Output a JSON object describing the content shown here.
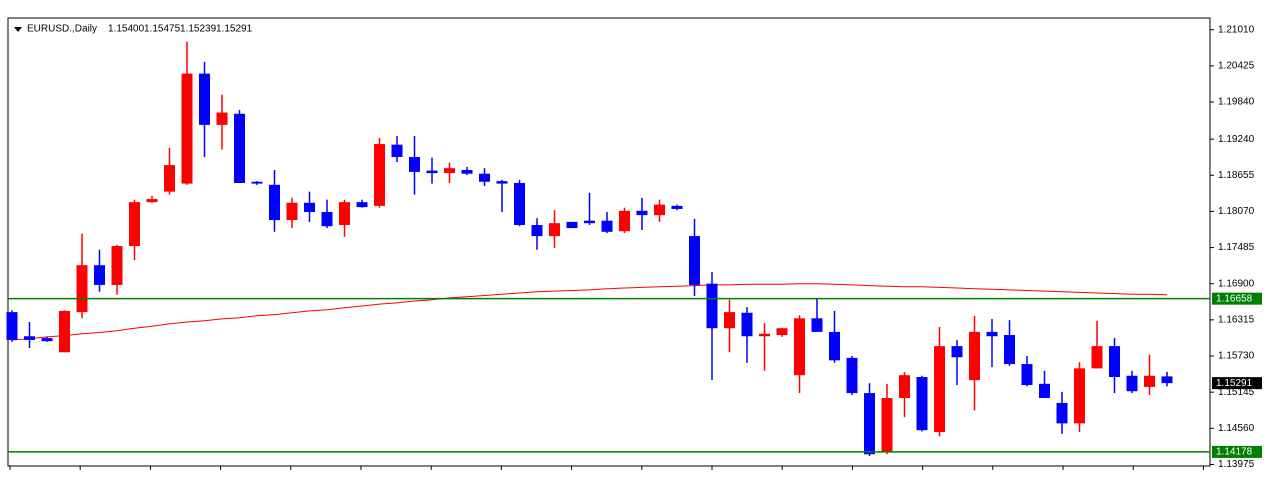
{
  "chart_data": {
    "type": "candlestick",
    "title": "EURUSD.,Daily",
    "header_values": [
      {
        "value": 1.154,
        "label": "1.15400"
      },
      {
        "value": 1.15475,
        "label": "1.15475"
      },
      {
        "value": 1.15239,
        "label": "1.15239"
      },
      {
        "value": 1.15291,
        "label": "1.15291"
      }
    ],
    "up_color": "#ff0000",
    "down_color": "#0000ff",
    "open": [
      1.1644,
      1.1605,
      1.1602,
      1.1579,
      1.1644,
      1.172,
      1.1688,
      1.1751,
      1.1822,
      1.1839,
      1.1852,
      1.203,
      1.1947,
      1.1965,
      1.1855,
      1.185,
      1.1793,
      1.1821,
      1.1806,
      1.1785,
      1.1822,
      1.1816,
      1.1915,
      1.1895,
      1.1873,
      1.1869,
      1.1874,
      1.1868,
      1.1856,
      1.1853,
      1.1785,
      1.1767,
      1.179,
      1.1792,
      1.1792,
      1.1775,
      1.1808,
      1.1801,
      1.1816,
      1.1767,
      1.169,
      1.1618,
      1.1643,
      1.1605,
      1.1607,
      1.1542,
      1.1634,
      1.1612,
      1.157,
      1.1513,
      1.1417,
      1.1505,
      1.1539,
      1.145,
      1.1589,
      1.1534,
      1.1612,
      1.1607,
      1.156,
      1.1528,
      1.1497,
      1.1464,
      1.1553,
      1.1589,
      1.1541,
      1.1523,
      1.154
    ],
    "high": [
      1.1647,
      1.1628,
      1.1604,
      1.1647,
      1.1771,
      1.1745,
      1.1753,
      1.1826,
      1.1832,
      1.191,
      1.2082,
      1.2049,
      1.1996,
      1.1971,
      1.1856,
      1.1874,
      1.1829,
      1.1839,
      1.1826,
      1.1826,
      1.1826,
      1.1926,
      1.1929,
      1.1929,
      1.1894,
      1.1886,
      1.1879,
      1.1877,
      1.1858,
      1.1858,
      1.1796,
      1.1809,
      1.179,
      1.1837,
      1.1806,
      1.1813,
      1.1829,
      1.1826,
      1.1818,
      1.1795,
      1.1709,
      1.1664,
      1.1652,
      1.1626,
      1.1618,
      1.1639,
      1.1667,
      1.1646,
      1.1573,
      1.1529,
      1.1528,
      1.1547,
      1.1541,
      1.162,
      1.1599,
      1.1638,
      1.1633,
      1.1631,
      1.1573,
      1.1549,
      1.1515,
      1.1563,
      1.163,
      1.1602,
      1.1549,
      1.1575,
      1.15475
    ],
    "low": [
      1.1596,
      1.1586,
      1.1596,
      1.1579,
      1.1634,
      1.1677,
      1.1672,
      1.1728,
      1.1821,
      1.1834,
      1.185,
      1.1895,
      1.1907,
      1.1853,
      1.185,
      1.1774,
      1.178,
      1.179,
      1.178,
      1.1766,
      1.1813,
      1.1813,
      1.1887,
      1.1834,
      1.1852,
      1.1853,
      1.1866,
      1.1848,
      1.1806,
      1.1783,
      1.1745,
      1.1748,
      1.178,
      1.1785,
      1.1772,
      1.1772,
      1.1777,
      1.179,
      1.1809,
      1.167,
      1.1534,
      1.1579,
      1.1562,
      1.1549,
      1.1604,
      1.1513,
      1.1612,
      1.1562,
      1.151,
      1.1411,
      1.1414,
      1.1474,
      1.1451,
      1.1443,
      1.1526,
      1.1485,
      1.1555,
      1.1557,
      1.1524,
      1.1505,
      1.1447,
      1.145,
      1.1553,
      1.1513,
      1.1513,
      1.151,
      1.15239
    ],
    "close": [
      1.1599,
      1.1599,
      1.1597,
      1.1646,
      1.172,
      1.1688,
      1.1751,
      1.1822,
      1.1827,
      1.1882,
      1.203,
      1.1947,
      1.1967,
      1.1853,
      1.1852,
      1.1793,
      1.1821,
      1.1806,
      1.1783,
      1.1822,
      1.1814,
      1.1916,
      1.1895,
      1.1871,
      1.1869,
      1.1877,
      1.1868,
      1.1855,
      1.1852,
      1.1785,
      1.1767,
      1.1788,
      1.178,
      1.1788,
      1.1774,
      1.1808,
      1.1801,
      1.1818,
      1.1811,
      1.1688,
      1.1618,
      1.1644,
      1.1605,
      1.1609,
      1.1618,
      1.1634,
      1.1612,
      1.1566,
      1.1513,
      1.1414,
      1.1505,
      1.1542,
      1.1453,
      1.1589,
      1.1571,
      1.1612,
      1.1605,
      1.156,
      1.1526,
      1.1505,
      1.1464,
      1.1553,
      1.1589,
      1.1539,
      1.1516,
      1.1541,
      1.15291
    ],
    "moving_average": {
      "color": "#ff0000",
      "values": [
        1.1599,
        1.1601,
        1.1604,
        1.1606,
        1.1609,
        1.1611,
        1.1614,
        1.1618,
        1.1621,
        1.1625,
        1.1628,
        1.163,
        1.1633,
        1.1635,
        1.1638,
        1.164,
        1.1643,
        1.1646,
        1.1648,
        1.1651,
        1.1654,
        1.1657,
        1.1659,
        1.1662,
        1.1664,
        1.1667,
        1.1669,
        1.1671,
        1.1673,
        1.1675,
        1.1677,
        1.1678,
        1.1679,
        1.168,
        1.1682,
        1.1683,
        1.1684,
        1.1685,
        1.1686,
        1.1687,
        1.1688,
        1.1688,
        1.1689,
        1.1689,
        1.1689,
        1.169,
        1.169,
        1.1689,
        1.1688,
        1.1687,
        1.1686,
        1.1685,
        1.1685,
        1.1684,
        1.1683,
        1.1682,
        1.1681,
        1.168,
        1.1679,
        1.1678,
        1.1677,
        1.1676,
        1.1675,
        1.1674,
        1.1673,
        1.1673,
        1.1672
      ]
    },
    "levels": {
      "color": "#008000",
      "values": [
        {
          "value": 1.16658,
          "label": "1.16658"
        },
        {
          "value": 1.14178,
          "label": "1.14178"
        }
      ]
    },
    "current_price": {
      "value": 1.15291,
      "label": "1.15291"
    },
    "ylim": [
      1.1395,
      1.212
    ],
    "yticks": [
      {
        "value": 1.2101,
        "label": "1.21010"
      },
      {
        "value": 1.20425,
        "label": "1.20425"
      },
      {
        "value": 1.1984,
        "label": "1.19840"
      },
      {
        "value": 1.1924,
        "label": "1.19240"
      },
      {
        "value": 1.18655,
        "label": "1.18655"
      },
      {
        "value": 1.1807,
        "label": "1.18070"
      },
      {
        "value": 1.17485,
        "label": "1.17485"
      },
      {
        "value": 1.169,
        "label": "1.16900"
      },
      {
        "value": 1.16315,
        "label": "1.16315"
      },
      {
        "value": 1.1573,
        "label": "1.15730"
      },
      {
        "value": 1.15145,
        "label": "1.15145"
      },
      {
        "value": 1.1456,
        "label": "1.14560"
      },
      {
        "value": 1.13975,
        "label": "1.13975"
      }
    ]
  }
}
